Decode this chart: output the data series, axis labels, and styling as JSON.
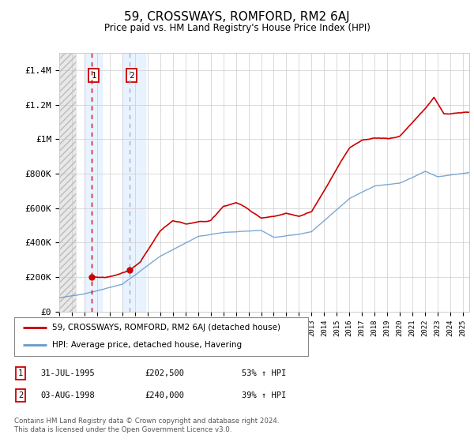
{
  "title": "59, CROSSWAYS, ROMFORD, RM2 6AJ",
  "subtitle": "Price paid vs. HM Land Registry's House Price Index (HPI)",
  "legend_line1": "59, CROSSWAYS, ROMFORD, RM2 6AJ (detached house)",
  "legend_line2": "HPI: Average price, detached house, Havering",
  "sale1_date": "31-JUL-1995",
  "sale1_price": "£202,500",
  "sale1_hpi": "53% ↑ HPI",
  "sale1_year": 1995.58,
  "sale1_value": 202500,
  "sale2_date": "03-AUG-1998",
  "sale2_price": "£240,000",
  "sale2_hpi": "39% ↑ HPI",
  "sale2_year": 1998.6,
  "sale2_value": 240000,
  "price_line_color": "#cc0000",
  "hpi_line_color": "#6699cc",
  "vline1_color": "#cc0000",
  "vline2_color": "#aaaacc",
  "ylim": [
    0,
    1500000
  ],
  "yticks": [
    0,
    200000,
    400000,
    600000,
    800000,
    1000000,
    1200000,
    1400000
  ],
  "ytick_labels": [
    "£0",
    "£200K",
    "£400K",
    "£600K",
    "£800K",
    "£1M",
    "£1.2M",
    "£1.4M"
  ],
  "footer": "Contains HM Land Registry data © Crown copyright and database right 2024.\nThis data is licensed under the Open Government Licence v3.0.",
  "background_color": "#ffffff",
  "grid_color": "#cccccc",
  "xlim_start": 1993,
  "xlim_end": 2025.5
}
